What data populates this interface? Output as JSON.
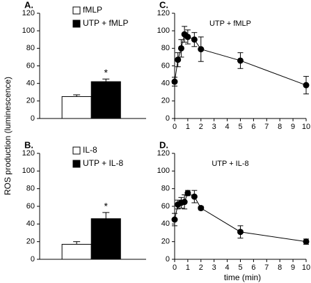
{
  "chart_data": [
    {
      "type": "bar",
      "panel": "A.",
      "ylabel": "ROS production (luminescence)",
      "categories": [
        "fMLP",
        "UTP + fMLP"
      ],
      "values": [
        25,
        42
      ],
      "errors": [
        2,
        3
      ],
      "colors": [
        "#ffffff",
        "#000000"
      ],
      "ylim": [
        0,
        120
      ],
      "yticks": [
        0,
        20,
        40,
        60,
        80,
        100,
        120
      ],
      "legend": "top-left",
      "annotations": [
        {
          "text": "*",
          "category": "UTP + fMLP"
        }
      ]
    },
    {
      "type": "bar",
      "panel": "B.",
      "categories": [
        "IL-8",
        "UTP + IL-8"
      ],
      "values": [
        17,
        46
      ],
      "errors": [
        3,
        7
      ],
      "colors": [
        "#ffffff",
        "#000000"
      ],
      "ylim": [
        0,
        120
      ],
      "yticks": [
        0,
        20,
        40,
        60,
        80,
        100,
        120
      ],
      "legend": "top-left",
      "annotations": [
        {
          "text": "*",
          "category": "UTP + IL-8"
        }
      ]
    },
    {
      "type": "line",
      "panel": "C.",
      "annotation": "UTP + fMLP",
      "x": [
        0,
        0.25,
        0.5,
        0.75,
        1,
        1.5,
        2,
        5,
        10
      ],
      "values": [
        42,
        67,
        80,
        96,
        93,
        90,
        79,
        66,
        38
      ],
      "errors": [
        5,
        8,
        10,
        9,
        8,
        8,
        14,
        9,
        10
      ],
      "color": "#000000",
      "xlim": [
        0,
        10
      ],
      "xticks": [
        0,
        1,
        2,
        3,
        4,
        5,
        6,
        7,
        8,
        9,
        10
      ],
      "ylim": [
        0,
        120
      ],
      "yticks": [
        0,
        20,
        40,
        60,
        80,
        100,
        120
      ]
    },
    {
      "type": "line",
      "panel": "D.",
      "annotation": "UTP + IL-8",
      "xlabel": "time (min)",
      "x": [
        0,
        0.25,
        0.5,
        0.75,
        1,
        1.5,
        2,
        5,
        10
      ],
      "values": [
        45,
        62,
        64,
        65,
        75,
        71,
        58,
        31,
        20
      ],
      "errors": [
        7,
        5,
        6,
        8,
        3,
        7,
        2,
        7,
        3
      ],
      "color": "#000000",
      "xlim": [
        0,
        10
      ],
      "xticks": [
        0,
        1,
        2,
        3,
        4,
        5,
        6,
        7,
        8,
        9,
        10
      ],
      "ylim": [
        0,
        120
      ],
      "yticks": [
        0,
        20,
        40,
        60,
        80,
        100,
        120
      ]
    }
  ]
}
